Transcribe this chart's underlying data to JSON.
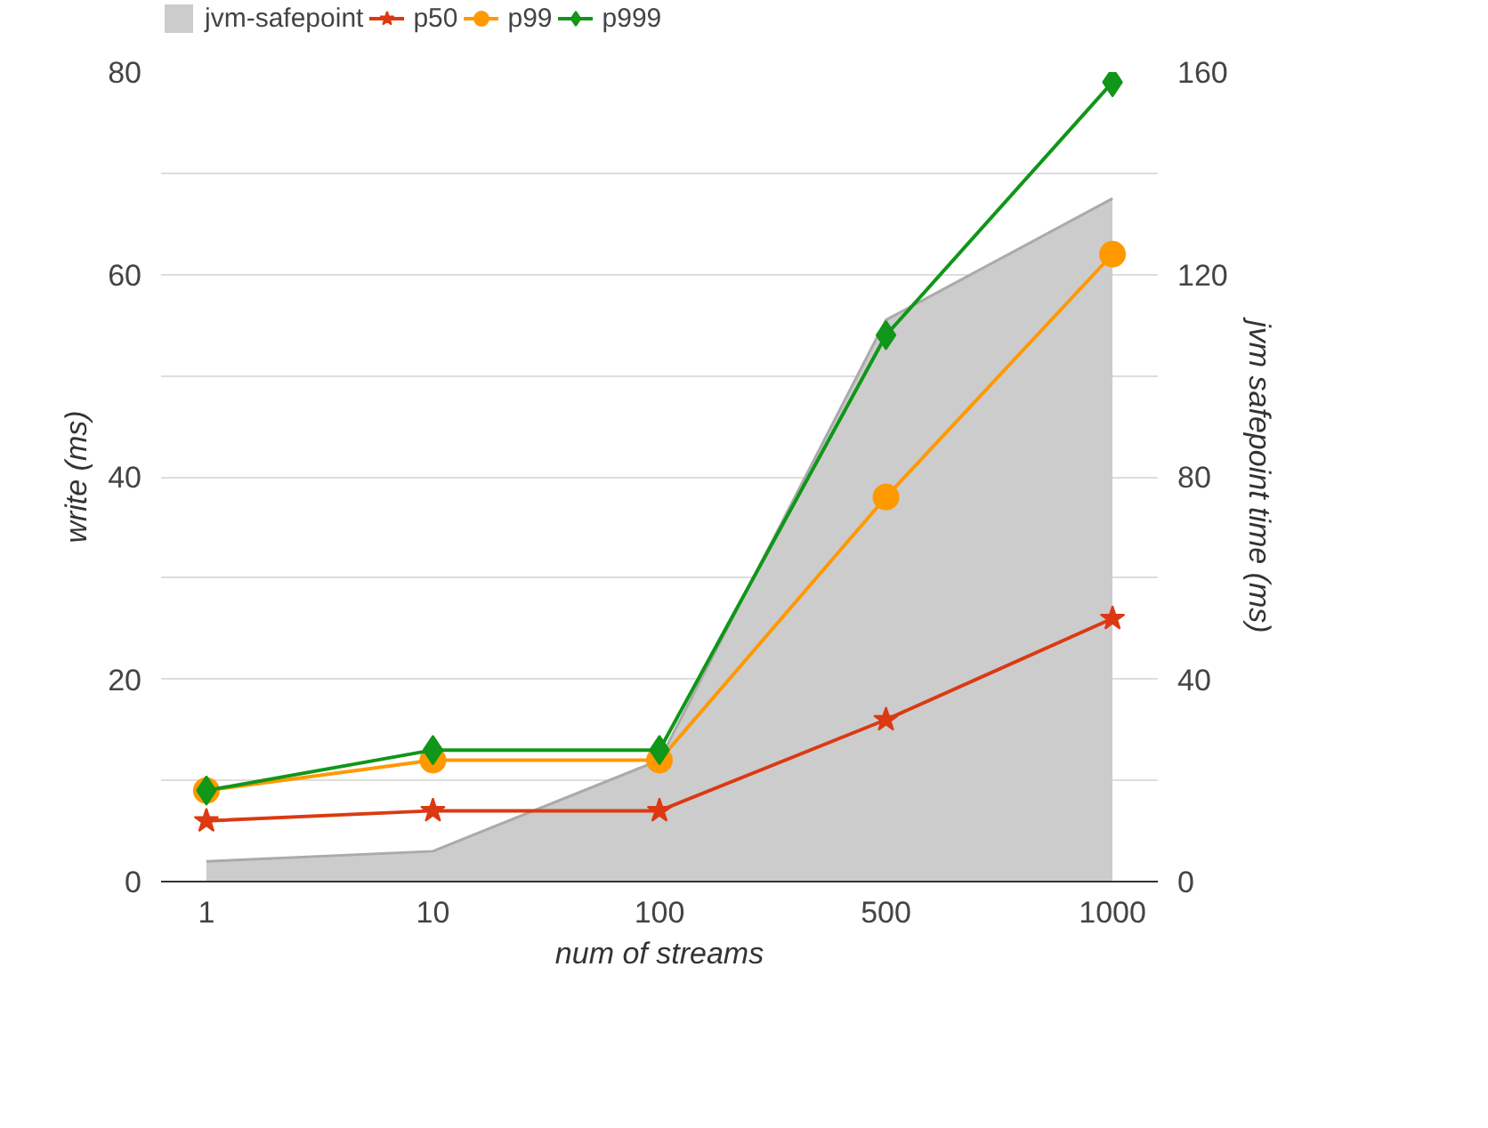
{
  "chart_data": {
    "type": "line",
    "categories": [
      "1",
      "10",
      "100",
      "500",
      "1000"
    ],
    "xlabel": "num of streams",
    "ylabel": "write (ms)",
    "y2label": "jvm safepoint time (ms)",
    "ylim": [
      0,
      80
    ],
    "yticks": [
      0,
      {
        "value": 10,
        "label": null
      },
      20,
      {
        "value": 30,
        "label": null
      },
      40,
      {
        "value": 50,
        "label": null
      },
      60,
      {
        "value": 70,
        "label": null
      },
      80
    ],
    "y2lim": [
      0,
      160
    ],
    "y2ticks": [
      0,
      40,
      80,
      120,
      160
    ],
    "grid": "y",
    "legend": "top left",
    "series": [
      {
        "name": "jvm-safepoint",
        "type": "area",
        "axis": "y2",
        "color": "#cccccc",
        "values": [
          4,
          6,
          24,
          111,
          135
        ]
      },
      {
        "name": "p50",
        "marker": "star",
        "color": "#dc3912",
        "values": [
          6,
          7,
          7,
          16,
          26
        ]
      },
      {
        "name": "p99",
        "marker": "circle",
        "color": "#ff9900",
        "values": [
          9,
          12,
          12,
          38,
          62
        ]
      },
      {
        "name": "p999",
        "marker": "diamond",
        "color": "#109618",
        "values": [
          9,
          13,
          13,
          54,
          79
        ]
      }
    ]
  }
}
